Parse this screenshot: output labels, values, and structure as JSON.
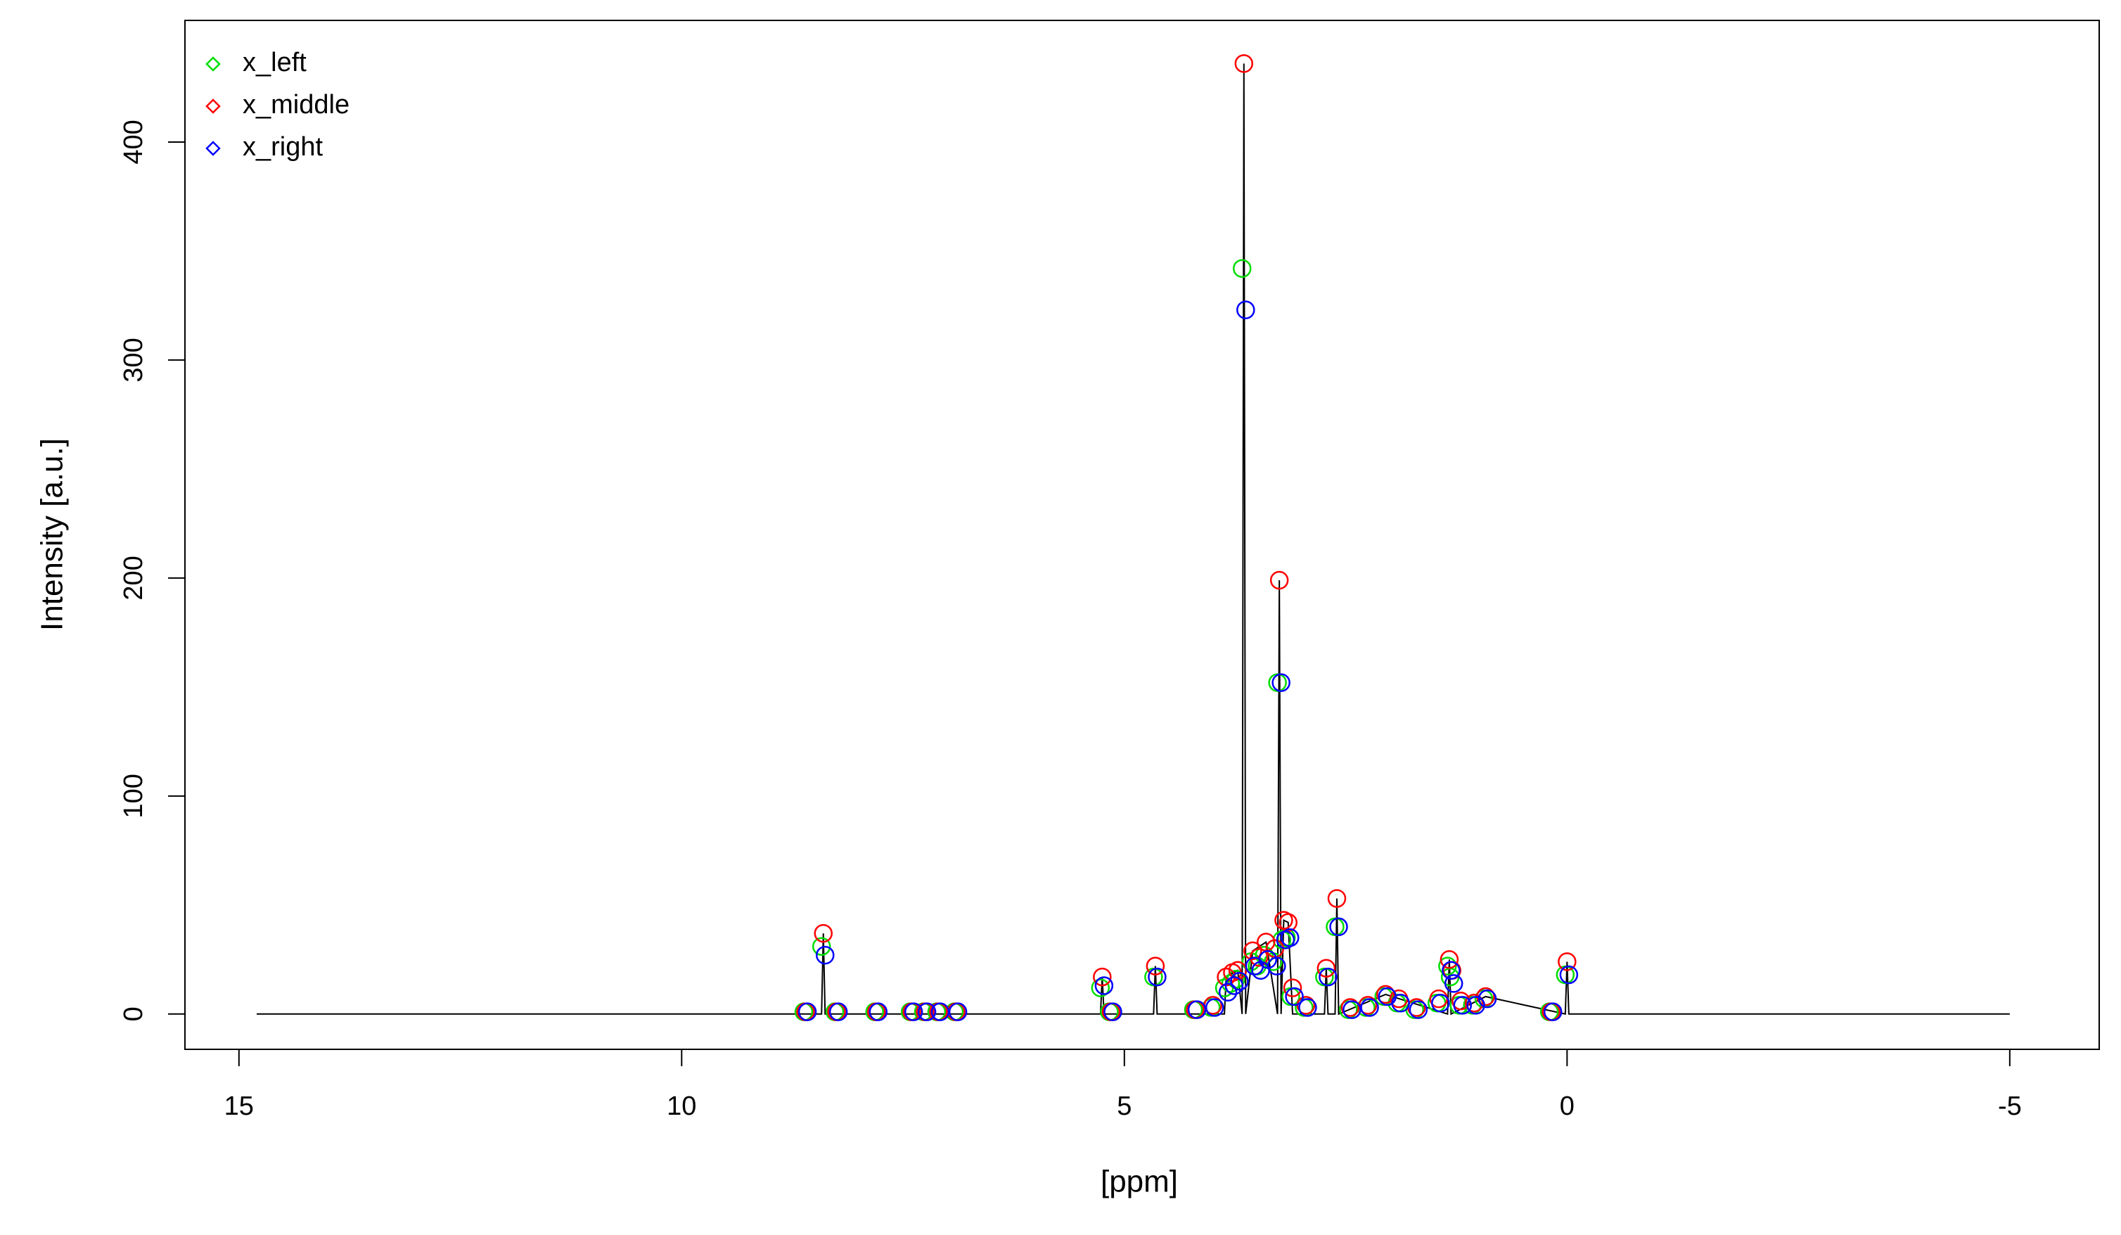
{
  "chart_data": {
    "type": "scatter",
    "x_label": "[ppm]",
    "y_label": "Intensity [a.u.]",
    "xlim": [
      15.61,
      -6.01
    ],
    "ylim": [
      -16.2,
      455.8
    ],
    "xticks": [
      15,
      10,
      5,
      0,
      -5
    ],
    "yticks": [
      0,
      100,
      200,
      300,
      400
    ],
    "legend": "top-left",
    "line": {
      "color": "#000000",
      "x": [
        14.8,
        8.42,
        8.4,
        8.38,
        5.27,
        5.25,
        5.23,
        4.67,
        4.65,
        4.63,
        3.87,
        3.85,
        3.72,
        3.67,
        3.65,
        3.63,
        3.55,
        3.4,
        3.27,
        3.25,
        3.23,
        3.2,
        3.15,
        3.1,
        2.74,
        2.72,
        2.7,
        2.62,
        2.6,
        2.58,
        2.05,
        1.35,
        1.33,
        1.31,
        0.92,
        0.02,
        0.0,
        -0.02,
        -5.0
      ],
      "y": [
        0,
        0,
        37,
        0,
        0,
        17,
        0,
        0,
        22,
        0,
        0,
        17,
        20,
        0,
        436,
        0,
        29,
        33,
        0,
        199,
        0,
        43,
        42,
        0,
        0,
        21,
        0,
        0,
        53,
        0,
        9,
        0,
        25,
        0,
        8,
        0,
        24,
        0,
        0
      ]
    },
    "series": [
      {
        "name": "x_left",
        "color": "#00dd00",
        "x": [
          8.42,
          8.62,
          8.27,
          7.82,
          7.42,
          7.27,
          7.12,
          6.92,
          5.27,
          5.17,
          4.67,
          4.22,
          4.02,
          3.87,
          3.8,
          3.74,
          3.67,
          3.57,
          3.5,
          3.42,
          3.32,
          3.27,
          3.22,
          3.17,
          3.12,
          2.97,
          2.74,
          2.62,
          2.47,
          2.27,
          2.07,
          1.92,
          1.72,
          1.47,
          1.35,
          1.32,
          1.22,
          1.07,
          0.94,
          0.02,
          0.2
        ],
        "values": [
          31,
          1,
          1,
          1,
          1,
          1,
          1,
          1,
          12,
          1,
          17,
          2,
          3,
          12,
          14,
          16,
          342,
          24,
          22,
          27,
          24,
          152,
          34,
          35,
          8,
          3,
          17,
          40,
          2,
          3,
          8,
          5,
          2,
          5,
          22,
          17,
          4,
          4,
          7,
          18,
          1
        ]
      },
      {
        "name": "x_middle",
        "color": "#ff0000",
        "x": [
          8.4,
          8.6,
          8.25,
          7.8,
          7.4,
          7.25,
          7.1,
          6.9,
          5.25,
          5.15,
          4.65,
          4.2,
          4.0,
          3.85,
          3.78,
          3.72,
          3.65,
          3.55,
          3.48,
          3.4,
          3.3,
          3.25,
          3.2,
          3.15,
          3.1,
          2.95,
          2.72,
          2.6,
          2.45,
          2.25,
          2.05,
          1.9,
          1.7,
          1.45,
          1.33,
          1.3,
          1.2,
          1.05,
          0.92,
          0.0,
          0.18
        ],
        "values": [
          37,
          1,
          1,
          1,
          1,
          1,
          1,
          1,
          17,
          1,
          22,
          2,
          4,
          17,
          19,
          20,
          436,
          29,
          26,
          33,
          30,
          199,
          43,
          42,
          12,
          4,
          21,
          53,
          3,
          4,
          9,
          7,
          3,
          7,
          25,
          20,
          6,
          5,
          8,
          24,
          1
        ]
      },
      {
        "name": "x_right",
        "color": "#0000ff",
        "x": [
          8.38,
          8.58,
          8.23,
          7.78,
          7.38,
          7.23,
          7.08,
          6.88,
          5.23,
          5.13,
          4.63,
          4.18,
          3.98,
          3.83,
          3.76,
          3.7,
          3.63,
          3.53,
          3.46,
          3.38,
          3.28,
          3.23,
          3.18,
          3.13,
          3.08,
          2.93,
          2.7,
          2.58,
          2.43,
          2.23,
          2.03,
          1.88,
          1.68,
          1.43,
          1.31,
          1.28,
          1.18,
          1.03,
          0.9,
          -0.02,
          0.16
        ],
        "values": [
          27,
          1,
          1,
          1,
          1,
          1,
          1,
          1,
          13,
          1,
          17,
          2,
          3,
          10,
          13,
          15,
          323,
          22,
          20,
          25,
          22,
          152,
          34,
          35,
          8,
          3,
          17,
          40,
          2,
          3,
          8,
          5,
          2,
          5,
          20,
          14,
          4,
          4,
          7,
          18,
          1
        ]
      }
    ]
  }
}
